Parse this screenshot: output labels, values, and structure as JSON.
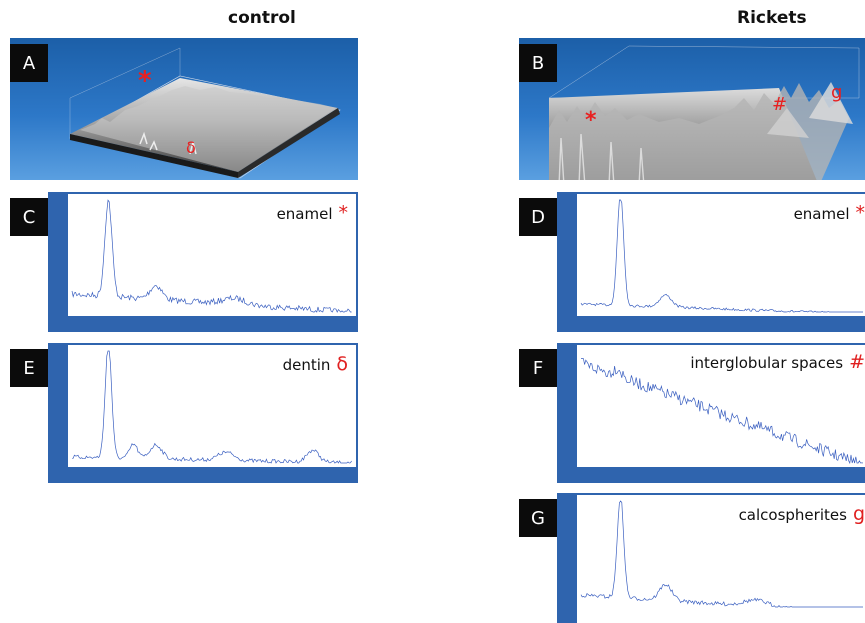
{
  "columns": {
    "left": "control",
    "right": "Rickets"
  },
  "panels": {
    "A": {
      "letter": "A",
      "markers": [
        "*",
        "δ"
      ]
    },
    "B": {
      "letter": "B",
      "markers": [
        "*",
        "#",
        "g"
      ]
    },
    "C": {
      "letter": "C",
      "label": "enamel",
      "symbol": "*"
    },
    "D": {
      "letter": "D",
      "label": "enamel",
      "symbol": "*"
    },
    "E": {
      "letter": "E",
      "label": "dentin",
      "symbol": "δ"
    },
    "F": {
      "letter": "F",
      "label": "interglobular spaces",
      "symbol": "#"
    },
    "G": {
      "letter": "G",
      "label": "calcospherites",
      "symbol": "g"
    }
  },
  "colors": {
    "spectrum": "#3a5fc0",
    "frame": "#2f64ae",
    "marker": "#e02020",
    "surface_bg": "#2d78c8"
  }
}
